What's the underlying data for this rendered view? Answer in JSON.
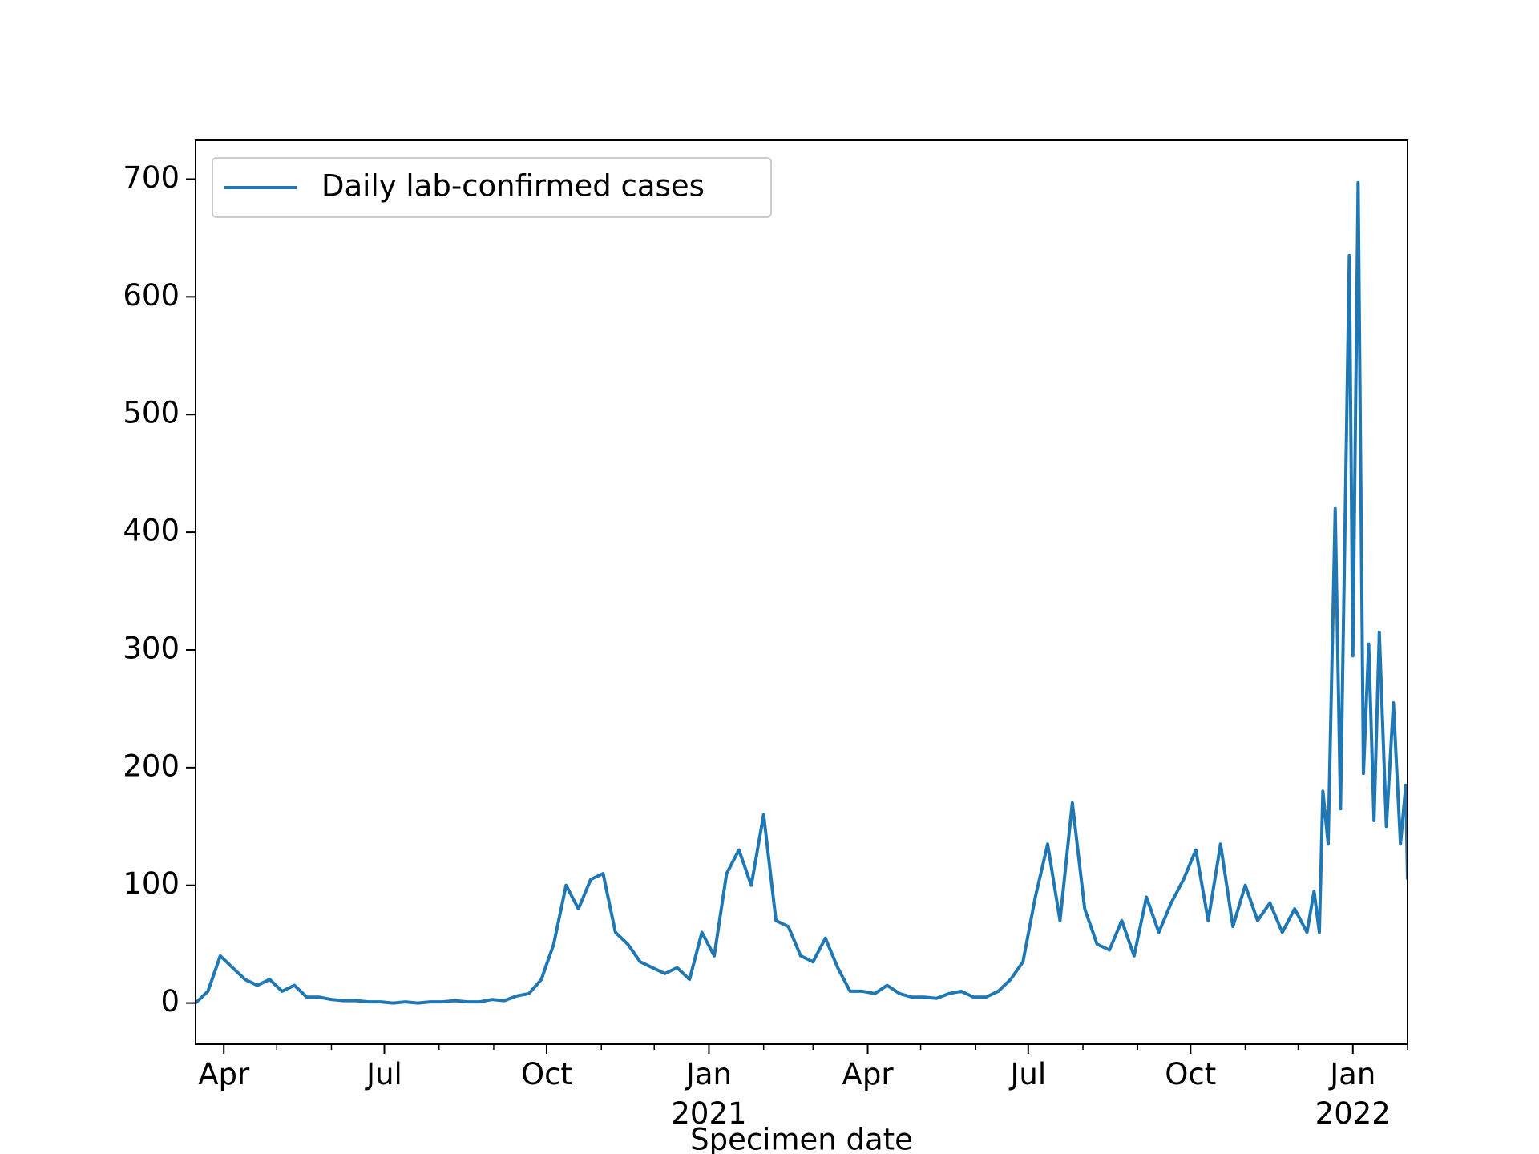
{
  "chart_data": {
    "type": "line",
    "xlabel": "Specimen date",
    "x": [
      "2020-03-16",
      "2020-03-23",
      "2020-03-30",
      "2020-04-06",
      "2020-04-13",
      "2020-04-20",
      "2020-04-27",
      "2020-05-04",
      "2020-05-11",
      "2020-05-18",
      "2020-05-25",
      "2020-06-01",
      "2020-06-08",
      "2020-06-15",
      "2020-06-22",
      "2020-06-29",
      "2020-07-06",
      "2020-07-13",
      "2020-07-20",
      "2020-07-27",
      "2020-08-03",
      "2020-08-10",
      "2020-08-17",
      "2020-08-24",
      "2020-08-31",
      "2020-09-07",
      "2020-09-14",
      "2020-09-21",
      "2020-09-28",
      "2020-10-05",
      "2020-10-12",
      "2020-10-19",
      "2020-10-26",
      "2020-11-02",
      "2020-11-09",
      "2020-11-16",
      "2020-11-23",
      "2020-11-30",
      "2020-12-07",
      "2020-12-14",
      "2020-12-21",
      "2020-12-28",
      "2021-01-04",
      "2021-01-11",
      "2021-01-18",
      "2021-01-25",
      "2021-02-01",
      "2021-02-08",
      "2021-02-15",
      "2021-02-22",
      "2021-03-01",
      "2021-03-08",
      "2021-03-15",
      "2021-03-22",
      "2021-03-29",
      "2021-04-05",
      "2021-04-12",
      "2021-04-19",
      "2021-04-26",
      "2021-05-03",
      "2021-05-10",
      "2021-05-17",
      "2021-05-24",
      "2021-05-31",
      "2021-06-07",
      "2021-06-14",
      "2021-06-21",
      "2021-06-28",
      "2021-07-05",
      "2021-07-12",
      "2021-07-19",
      "2021-07-26",
      "2021-08-02",
      "2021-08-09",
      "2021-08-16",
      "2021-08-23",
      "2021-08-30",
      "2021-09-06",
      "2021-09-13",
      "2021-09-20",
      "2021-09-27",
      "2021-10-04",
      "2021-10-11",
      "2021-10-18",
      "2021-10-25",
      "2021-11-01",
      "2021-11-08",
      "2021-11-15",
      "2021-11-22",
      "2021-11-29",
      "2021-12-06",
      "2021-12-10",
      "2021-12-13",
      "2021-12-15",
      "2021-12-18",
      "2021-12-22",
      "2021-12-25",
      "2021-12-30",
      "2022-01-01",
      "2022-01-04",
      "2022-01-07",
      "2022-01-10",
      "2022-01-13",
      "2022-01-16",
      "2022-01-20",
      "2022-01-24",
      "2022-01-28",
      "2022-01-31",
      "2022-02-01"
    ],
    "series": [
      {
        "name": "Daily lab-confirmed cases",
        "color": "#1f77b4",
        "values": [
          0,
          10,
          40,
          30,
          20,
          15,
          20,
          10,
          15,
          5,
          5,
          3,
          2,
          2,
          1,
          1,
          0,
          1,
          0,
          1,
          1,
          2,
          1,
          1,
          3,
          2,
          6,
          8,
          20,
          50,
          100,
          80,
          105,
          110,
          60,
          50,
          35,
          30,
          25,
          30,
          20,
          60,
          40,
          110,
          130,
          100,
          160,
          70,
          65,
          40,
          35,
          55,
          30,
          10,
          10,
          8,
          15,
          8,
          5,
          5,
          4,
          8,
          10,
          5,
          5,
          10,
          20,
          35,
          90,
          135,
          70,
          170,
          80,
          50,
          45,
          70,
          40,
          90,
          60,
          85,
          105,
          130,
          70,
          135,
          65,
          100,
          70,
          85,
          60,
          80,
          60,
          95,
          60,
          180,
          135,
          420,
          165,
          635,
          295,
          697,
          195,
          305,
          155,
          315,
          150,
          255,
          135,
          185,
          105
        ]
      }
    ],
    "xlim": [
      "2020-03-16",
      "2022-02-01"
    ],
    "xticks": [
      {
        "value": "2020-04-01",
        "label": "Apr"
      },
      {
        "value": "2020-07-01",
        "label": "Jul"
      },
      {
        "value": "2020-10-01",
        "label": "Oct"
      },
      {
        "value": "2021-01-01",
        "label": "Jan\n2021"
      },
      {
        "value": "2021-04-01",
        "label": "Apr"
      },
      {
        "value": "2021-07-01",
        "label": "Jul"
      },
      {
        "value": "2021-10-01",
        "label": "Oct"
      },
      {
        "value": "2022-01-01",
        "label": "Jan\n2022"
      }
    ],
    "xminorticks": [
      "2020-05-01",
      "2020-06-01",
      "2020-08-01",
      "2020-09-01",
      "2020-11-01",
      "2020-12-01",
      "2021-02-01",
      "2021-03-01",
      "2021-05-01",
      "2021-06-01",
      "2021-08-01",
      "2021-09-01",
      "2021-11-01",
      "2021-12-01",
      "2022-02-01"
    ],
    "ylim": [
      -35,
      733
    ],
    "yticks": [
      0,
      100,
      200,
      300,
      400,
      500,
      600,
      700
    ],
    "legend": "upper left"
  }
}
